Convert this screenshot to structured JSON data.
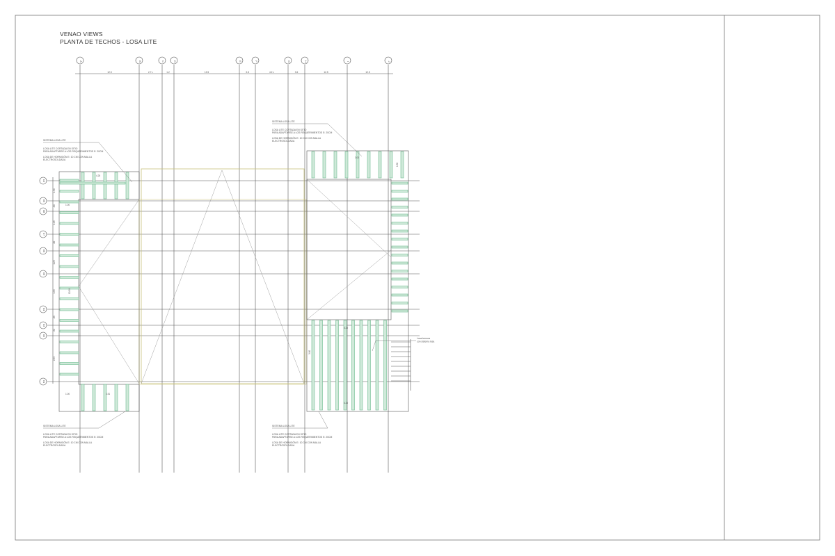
{
  "title": {
    "project": "VENAO VIEWS",
    "sheet": "PLANTA DE TECHOS - LOSA LITE"
  },
  "colors": {
    "grid": "#555555",
    "rib": "#6dbb8f",
    "outline": "#c9c27a",
    "frame": "#777777"
  },
  "grid_columns": [
    "A",
    "B",
    "C",
    "D",
    "E",
    "F",
    "G",
    "H",
    "I",
    "J"
  ],
  "grid_rows": [
    "10",
    "09",
    "08",
    "07",
    "06",
    "05",
    "04",
    "03",
    "02",
    "01"
  ],
  "top_dimensions": [
    "12.5",
    "2.7 L",
    "1.2",
    "13.5",
    "3.8",
    "4.2 L",
    "3.6",
    "12.5",
    "12.5"
  ],
  "left_dimensions": [
    "1.50",
    ".60",
    "1.25",
    ".60",
    "1.25",
    "1.95",
    ".85",
    ".32",
    "2.55"
  ],
  "plan_labels": {
    "top_left_width": "4.25",
    "left_offset_top": "1.00",
    "left_offset_bottom": "1.00",
    "bottom_left_width": "3.51",
    "left_height": "10.38",
    "top_right_width": "3.00",
    "right_mid_width": "6.20",
    "right_bottom_width": "6.20",
    "right_height": "3.80",
    "right_offset": "1.50"
  },
  "annotations": [
    {
      "lines": [
        "SISTEMA LOSA LITE",
        "LOSA LITE CORTADA EN SITIO",
        "PARA ADAPTARSE A LOS REQUERIMIENTOS E: 20CM",
        "LOSA DE HORMIGÓN E: 10 CM CON MALLA",
        "ELECTROSOLDADA"
      ]
    },
    {
      "lines": [
        "SISTEMA LOSA LITE",
        "LOSA LITE CORTADA EN SITIO",
        "PARA ADAPTARSE A LOS REQUERIMIENTOS E: 20CM",
        "LOSA DE HORMIGÓN E: 10 CM CON MALLA",
        "ELECTROSOLDADA"
      ]
    },
    {
      "lines": [
        "SISTEMA LOSA LITE",
        "LOSA LITE CORTADA EN SITIO",
        "PARA ADAPTARSE A LOS REQUERIMIENTOS E: 20CM",
        "LOSA DE HORMIGÓN E: 10 CM CON MALLA",
        "ELECTROSOLDADA"
      ]
    },
    {
      "lines": [
        "SISTEMA LOSA LITE",
        "LOSA LITE CORTADA EN SITIO",
        "PARA ADAPTARSE A LOS REQUERIMIENTOS E: 20CM",
        "LOSA DE HORMIGÓN E: 10 CM CON MALLA",
        "ELECTROSOLDADA"
      ]
    }
  ],
  "stair_note": [
    "Losa ternura",
    "con sistema losa"
  ]
}
